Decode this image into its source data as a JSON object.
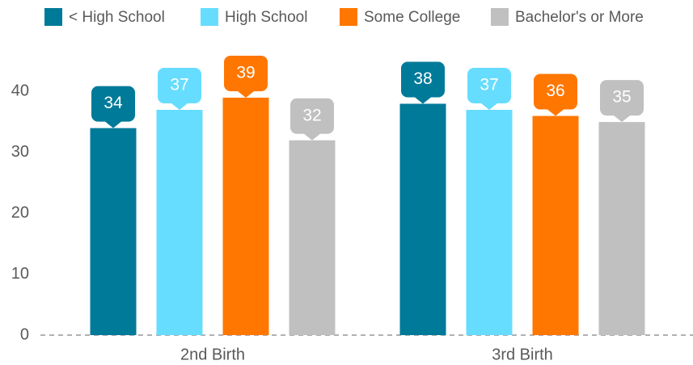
{
  "chart_data": {
    "type": "bar",
    "categories": [
      "2nd Birth",
      "3rd Birth"
    ],
    "series": [
      {
        "name": "< High School",
        "color": "#007a99",
        "values": [
          34,
          38
        ]
      },
      {
        "name": "High School",
        "color": "#66ddff",
        "values": [
          37,
          37
        ]
      },
      {
        "name": "Some College",
        "color": "#ff7700",
        "values": [
          39,
          36
        ]
      },
      {
        "name": "Bachelor's or More",
        "color": "#c0c0c0",
        "values": [
          32,
          35
        ]
      }
    ],
    "ylim": [
      0,
      50
    ],
    "yticks": [
      0,
      10,
      20,
      30,
      40
    ],
    "grid": false,
    "legend": "top"
  }
}
